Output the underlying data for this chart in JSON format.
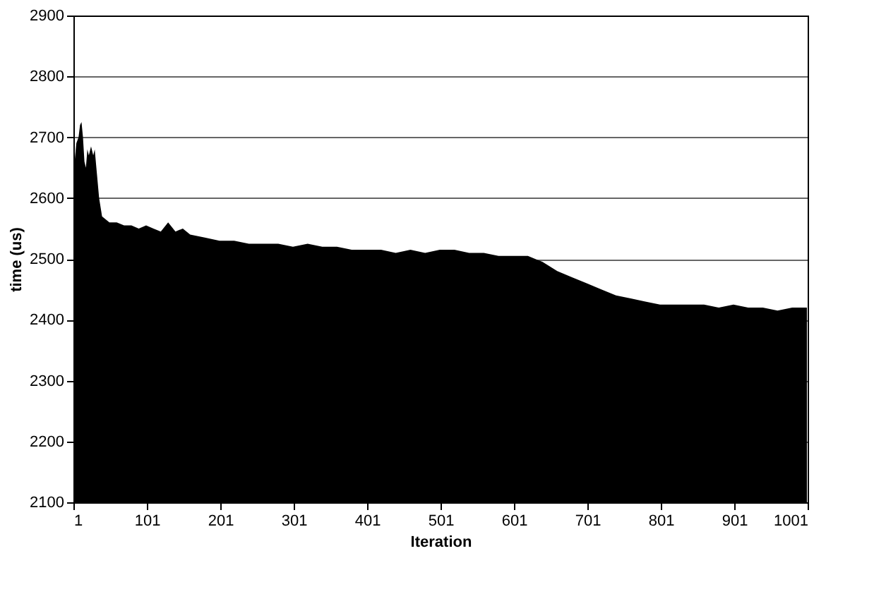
{
  "chart_data": {
    "type": "area",
    "xlabel": "Iteration",
    "ylabel": "time (us)",
    "x": [
      1,
      5,
      8,
      10,
      12,
      14,
      16,
      18,
      20,
      22,
      25,
      28,
      30,
      33,
      36,
      40,
      45,
      50,
      60,
      70,
      80,
      90,
      100,
      110,
      120,
      130,
      140,
      150,
      160,
      180,
      200,
      220,
      240,
      260,
      280,
      300,
      320,
      340,
      360,
      380,
      400,
      420,
      440,
      460,
      480,
      500,
      520,
      540,
      560,
      580,
      600,
      620,
      640,
      660,
      680,
      700,
      720,
      740,
      760,
      780,
      800,
      820,
      840,
      860,
      880,
      900,
      920,
      940,
      960,
      980,
      1000
    ],
    "series": [
      {
        "color": "#000000",
        "values": [
          2640,
          2690,
          2700,
          2720,
          2725,
          2700,
          2660,
          2650,
          2680,
          2670,
          2685,
          2670,
          2680,
          2640,
          2600,
          2570,
          2565,
          2560,
          2560,
          2555,
          2555,
          2550,
          2555,
          2550,
          2545,
          2560,
          2545,
          2550,
          2540,
          2535,
          2530,
          2530,
          2525,
          2525,
          2525,
          2520,
          2525,
          2520,
          2520,
          2515,
          2515,
          2515,
          2510,
          2515,
          2510,
          2515,
          2515,
          2510,
          2510,
          2505,
          2505,
          2505,
          2495,
          2480,
          2470,
          2460,
          2450,
          2440,
          2435,
          2430,
          2425,
          2425,
          2425,
          2425,
          2420,
          2425,
          2420,
          2420,
          2415,
          2420,
          2420
        ]
      }
    ],
    "xlim": [
      1,
      1001
    ],
    "xticks": [
      1,
      101,
      201,
      301,
      401,
      501,
      601,
      701,
      801,
      901,
      1001
    ],
    "ylim": [
      2100,
      2900
    ],
    "yticks": [
      2100,
      2200,
      2300,
      2400,
      2500,
      2600,
      2700,
      2800,
      2900
    ],
    "grid": "y"
  }
}
